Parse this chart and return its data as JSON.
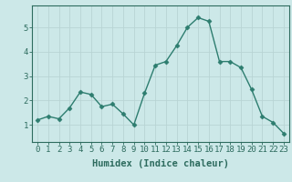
{
  "x": [
    0,
    1,
    2,
    3,
    4,
    5,
    6,
    7,
    8,
    9,
    10,
    11,
    12,
    13,
    14,
    15,
    16,
    17,
    18,
    19,
    20,
    21,
    22,
    23
  ],
  "y": [
    1.2,
    1.35,
    1.25,
    1.7,
    2.35,
    2.25,
    1.75,
    1.85,
    1.45,
    1.0,
    2.3,
    3.45,
    3.6,
    4.25,
    5.0,
    5.4,
    5.25,
    3.6,
    3.6,
    3.35,
    2.45,
    1.35,
    1.1,
    0.65
  ],
  "line_color": "#2d7d6f",
  "marker": "D",
  "marker_size": 2.5,
  "bg_color": "#cce8e8",
  "grid_color_major": "#b8d4d4",
  "grid_color_minor": "#c8e0e0",
  "xlabel": "Humidex (Indice chaleur)",
  "ylim": [
    0.3,
    5.9
  ],
  "xlim": [
    -0.5,
    23.5
  ],
  "yticks": [
    1,
    2,
    3,
    4,
    5
  ],
  "xticks": [
    0,
    1,
    2,
    3,
    4,
    5,
    6,
    7,
    8,
    9,
    10,
    11,
    12,
    13,
    14,
    15,
    16,
    17,
    18,
    19,
    20,
    21,
    22,
    23
  ],
  "tick_label_fontsize": 6.5,
  "xlabel_fontsize": 7.5,
  "tick_color": "#2d6b5e",
  "spine_color": "#2d6b5e"
}
